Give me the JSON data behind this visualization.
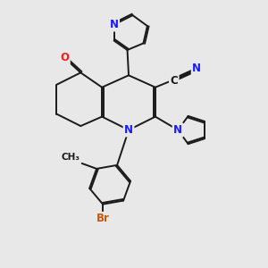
{
  "bg_color": "#e8e8e8",
  "bond_color": "#1a1a1a",
  "bond_lw": 1.4,
  "dbo": 0.055,
  "atom_colors": {
    "N": "#1a1aff",
    "O": "#ff1a1a",
    "Br": "#cc5500",
    "C": "#1a1a1a"
  },
  "fontsize": 8.5
}
